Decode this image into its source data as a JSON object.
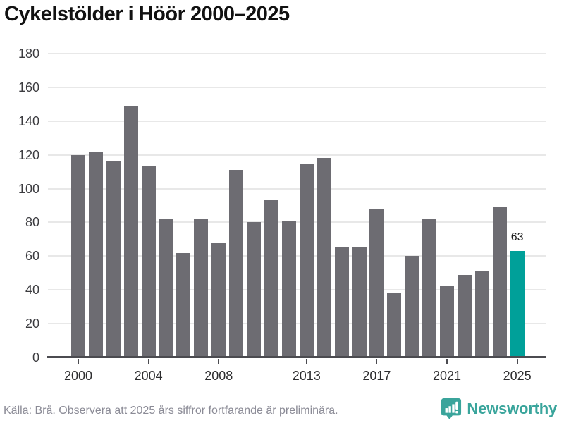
{
  "title": "Cykelstölder i Höör 2000–2025",
  "source": "Källa: Brå. Observera att 2025 års siffror fortfarande är preliminära.",
  "branding": {
    "name": "Newsworthy",
    "icon": "newsworthy-chart-bubble-icon"
  },
  "chart_data": {
    "type": "bar",
    "title": "Cykelstölder i Höör 2000–2025",
    "x": [
      2000,
      2001,
      2002,
      2003,
      2004,
      2005,
      2006,
      2007,
      2008,
      2009,
      2010,
      2011,
      2012,
      2013,
      2014,
      2015,
      2016,
      2017,
      2018,
      2019,
      2020,
      2021,
      2022,
      2023,
      2024,
      2025
    ],
    "values": [
      120,
      122,
      116,
      149,
      113,
      82,
      62,
      82,
      68,
      111,
      80,
      93,
      81,
      115,
      118,
      65,
      65,
      88,
      38,
      60,
      82,
      42,
      49,
      51,
      89,
      63
    ],
    "highlight_x": 2025,
    "highlight_value_label": "63",
    "x_tick_labels": [
      "2000",
      "2004",
      "2008",
      "2013",
      "2017",
      "2021",
      "2025"
    ],
    "y_ticks": [
      0,
      20,
      40,
      60,
      80,
      100,
      120,
      140,
      160,
      180
    ],
    "ylim": [
      0,
      180
    ],
    "grid": "horizontal",
    "legend": "none",
    "colors": {
      "bar": "#6d6c72",
      "highlight": "#00a099",
      "grid": "#e8e8e8",
      "axis": "#4b4b50",
      "value_label": "#1b1b1b",
      "brand": "#3aa59c"
    }
  }
}
